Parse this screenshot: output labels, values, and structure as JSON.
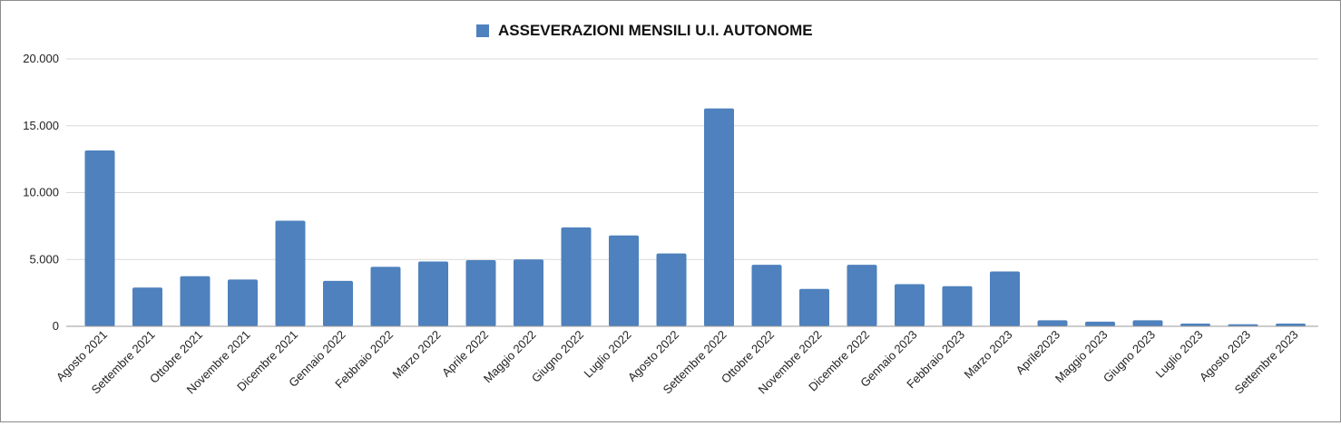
{
  "chart_data": {
    "type": "bar",
    "title": "ASSEVERAZIONI MENSILI U.I. AUTONOME",
    "legend": {
      "position": "top",
      "entries": [
        "ASSEVERAZIONI MENSILI U.I. AUTONOME"
      ]
    },
    "xlabel": "",
    "ylabel": "",
    "ylim": [
      0,
      20000
    ],
    "grid": true,
    "yticks": [
      {
        "value": 0,
        "label": "0"
      },
      {
        "value": 5000,
        "label": "5.000"
      },
      {
        "value": 10000,
        "label": "10.000"
      },
      {
        "value": 15000,
        "label": "15.000"
      },
      {
        "value": 20000,
        "label": "20.000"
      }
    ],
    "categories": [
      "Agosto 2021",
      "Settembre 2021",
      "Ottobre 2021",
      "Novembre 2021",
      "Dicembre 2021",
      "Gennaio 2022",
      "Febbraio 2022",
      "Marzo 2022",
      "Aprile 2022",
      "Maggio 2022",
      "Giugno 2022",
      "Luglio 2022",
      "Agosto 2022",
      "Settembre 2022",
      "Ottobre 2022",
      "Novembre 2022",
      "Dicembre 2022",
      "Gennaio 2023",
      "Febbraio 2023",
      "Marzo 2023",
      "Aprile2023",
      "Maggio 2023",
      "Giugno 2023",
      "Luglio 2023",
      "Agosto 2023",
      "Settembre 2023"
    ],
    "series": [
      {
        "name": "ASSEVERAZIONI MENSILI U.I. AUTONOME",
        "color": "#4e81bd",
        "values": [
          13150,
          2900,
          3750,
          3500,
          7900,
          3400,
          4450,
          4850,
          4950,
          5000,
          7400,
          6800,
          5450,
          16300,
          4600,
          2800,
          4600,
          3150,
          3000,
          4100,
          450,
          350,
          450,
          200,
          150,
          200
        ]
      }
    ]
  }
}
